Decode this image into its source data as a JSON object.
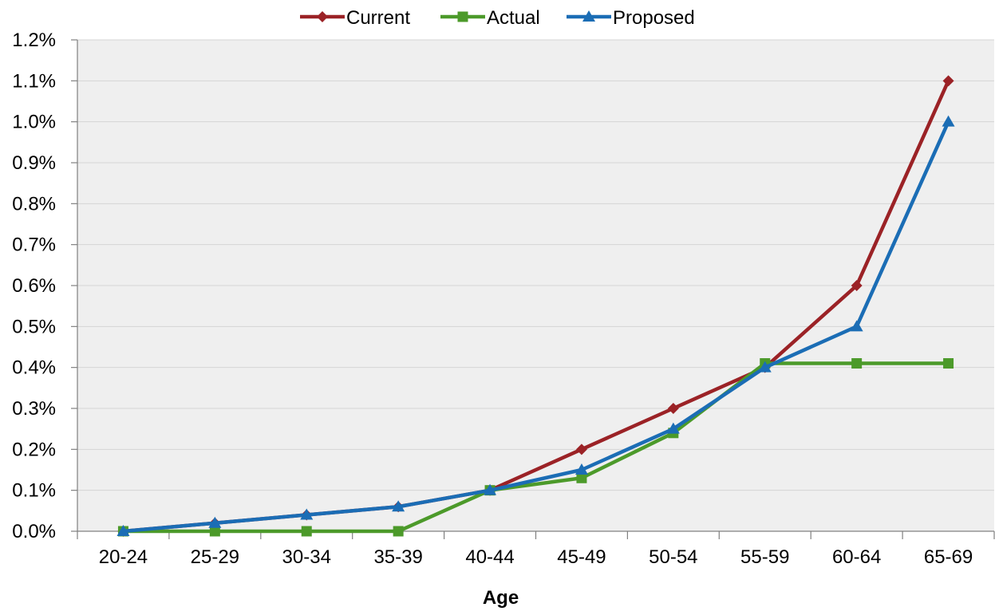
{
  "chart_data": {
    "type": "line",
    "title": "",
    "xlabel": "Age",
    "ylabel": "",
    "categories": [
      "20-24",
      "25-29",
      "30-34",
      "35-39",
      "40-44",
      "45-49",
      "50-54",
      "55-59",
      "60-64",
      "65-69"
    ],
    "y_tick_labels": [
      "0.0%",
      "0.1%",
      "0.2%",
      "0.3%",
      "0.4%",
      "0.5%",
      "0.6%",
      "0.7%",
      "0.8%",
      "0.9%",
      "1.0%",
      "1.1%",
      "1.2%"
    ],
    "ylim": [
      0,
      1.2
    ],
    "y_unit": "%",
    "grid": true,
    "legend_position": "top",
    "plot_background": "#EFEFEF",
    "series": [
      {
        "name": "Current",
        "color": "#9B2226",
        "marker": "diamond",
        "values": [
          0.0,
          0.02,
          0.04,
          0.06,
          0.1,
          0.2,
          0.3,
          0.4,
          0.6,
          1.1
        ]
      },
      {
        "name": "Actual",
        "color": "#4C9A2A",
        "marker": "square",
        "values": [
          0.0,
          0.0,
          0.0,
          0.0,
          0.1,
          0.13,
          0.24,
          0.41,
          0.41,
          0.41
        ]
      },
      {
        "name": "Proposed",
        "color": "#1B6DB5",
        "marker": "triangle",
        "values": [
          0.0,
          0.02,
          0.04,
          0.06,
          0.1,
          0.15,
          0.25,
          0.4,
          0.5,
          1.0
        ]
      }
    ]
  }
}
